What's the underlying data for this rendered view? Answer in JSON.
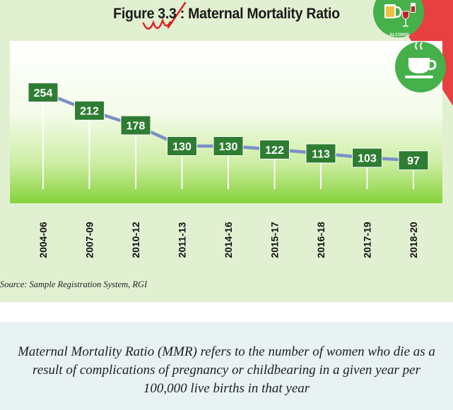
{
  "figure": {
    "title": "Figure 3.3 : Maternal Mortality Ratio",
    "source": "Source: Sample Registration System, RGI"
  },
  "chart_data": {
    "type": "line",
    "title": "Figure 3.3 : Maternal Mortality Ratio",
    "categories": [
      "2004-06",
      "2007-09",
      "2010-12",
      "2011-13",
      "2014-16",
      "2015-17",
      "2016-18",
      "2017-19",
      "2018-20"
    ],
    "series": [
      {
        "values": [
          254,
          212,
          178,
          130,
          130,
          122,
          113,
          103,
          97
        ]
      }
    ],
    "data_labels": true,
    "grid": false,
    "colors": {
      "line": "#7b8fc6",
      "label_box": "#2e7d32",
      "label_text": "#ffffff",
      "plot_bg_top": "#ffffff",
      "plot_bg_bottom": "#8ed63a"
    }
  },
  "icons": {
    "alcohol_badge": {
      "icon": "alcohol-icon",
      "label": "ALCOHOL",
      "color": "#46b04a"
    },
    "tea_badge": {
      "icon": "tea-cup-icon",
      "color": "#46b04a"
    }
  },
  "definition": {
    "text": "Maternal Mortality Ratio (MMR) refers to the number of women who die as a result of complications of pregnancy or childbearing in a given year per 100,000 live births in that year"
  },
  "colors": {
    "top_panel": "#e2f0d2",
    "bottom_panel": "#e8f2f2",
    "annotation_red": "#e02020",
    "corner_red": "#e64040"
  }
}
